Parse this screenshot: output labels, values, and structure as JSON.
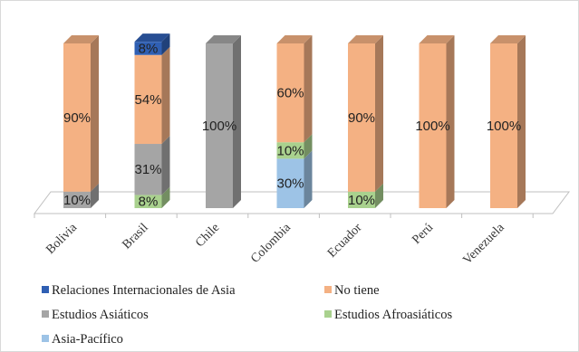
{
  "chart_data": {
    "type": "bar",
    "stacked": true,
    "three_d": true,
    "categories": [
      "Bolivia",
      "Brasil",
      "Chile",
      "Colombia",
      "Ecuador",
      "Perú",
      "Venezuela"
    ],
    "series": [
      {
        "name": "Asia-Pacífico",
        "color": "#9dc3e6",
        "values": [
          0,
          0,
          0,
          30,
          0,
          0,
          0
        ]
      },
      {
        "name": "Estudios Afroasiáticos",
        "color": "#a9d18e",
        "values": [
          0,
          8,
          0,
          10,
          10,
          0,
          0
        ]
      },
      {
        "name": "Estudios Asiáticos",
        "color": "#a5a5a5",
        "values": [
          10,
          31,
          100,
          0,
          0,
          0,
          0
        ]
      },
      {
        "name": "No tiene",
        "color": "#f4b183",
        "values": [
          90,
          54,
          0,
          60,
          90,
          100,
          100
        ]
      },
      {
        "name": "Relaciones Internacionales de Asia",
        "color": "#2f5fb3",
        "values": [
          0,
          8,
          0,
          0,
          0,
          0,
          0
        ]
      }
    ],
    "data_labels": [
      [
        "",
        "",
        "",
        "30%",
        "",
        "",
        ""
      ],
      [
        "",
        "8%",
        "",
        "10%",
        "10%",
        "",
        ""
      ],
      [
        "10%",
        "31%",
        "100%",
        "",
        "",
        "",
        ""
      ],
      [
        "90%",
        "54%",
        "",
        "60%",
        "90%",
        "100%",
        "100%"
      ],
      [
        "",
        "8%",
        "",
        "",
        "",
        "",
        ""
      ]
    ],
    "legend_order": [
      4,
      3,
      2,
      1,
      0
    ],
    "legend_position": "bottom",
    "ylim": [
      0,
      100
    ],
    "grid": false,
    "title": "",
    "xlabel": "",
    "ylabel": ""
  }
}
